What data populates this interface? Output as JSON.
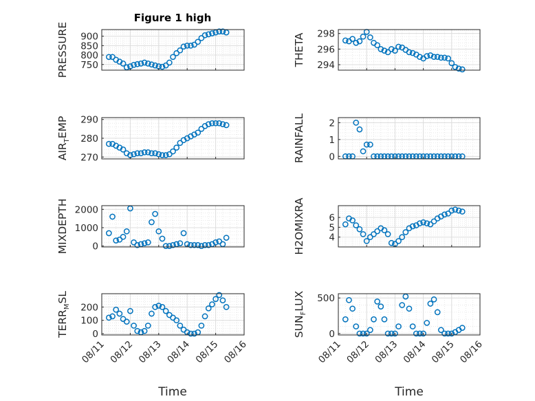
{
  "figure": {
    "title": "Figure 1 high",
    "marker_color": "#0072BD",
    "xtick_labels": [
      "08/11",
      "08/12",
      "08/13",
      "08/14",
      "08/15",
      "08/16"
    ],
    "xlabel": "Time"
  },
  "chart_data": [
    {
      "type": "scatter",
      "ylabel": "PRESSURE",
      "title": "Figure 1 high",
      "xlim": [
        "08/11",
        "08/16"
      ],
      "ylim": [
        720,
        935
      ],
      "yticks": [
        750,
        800,
        850,
        900
      ],
      "grid": true,
      "marker": "circle",
      "x": [
        "08/11 06:00",
        "08/11 09:00",
        "08/11 12:00",
        "08/11 15:00",
        "08/11 18:00",
        "08/11 21:00",
        "08/12 00:00",
        "08/12 03:00",
        "08/12 06:00",
        "08/12 09:00",
        "08/12 12:00",
        "08/12 15:00",
        "08/12 18:00",
        "08/12 21:00",
        "08/13 00:00",
        "08/13 03:00",
        "08/13 06:00",
        "08/13 09:00",
        "08/13 12:00",
        "08/13 15:00",
        "08/13 18:00",
        "08/13 21:00",
        "08/14 00:00",
        "08/14 03:00",
        "08/14 06:00",
        "08/14 09:00",
        "08/14 12:00",
        "08/14 15:00",
        "08/14 18:00",
        "08/14 21:00",
        "08/15 00:00",
        "08/15 03:00",
        "08/15 06:00",
        "08/15 09:00"
      ],
      "y": [
        790,
        790,
        775,
        765,
        755,
        735,
        740,
        748,
        752,
        755,
        760,
        755,
        750,
        745,
        740,
        738,
        745,
        760,
        790,
        810,
        825,
        845,
        850,
        850,
        855,
        870,
        890,
        905,
        910,
        915,
        920,
        925,
        925,
        920
      ]
    },
    {
      "type": "scatter",
      "ylabel": "THETA",
      "xlim": [
        "08/11",
        "08/16"
      ],
      "ylim": [
        293.3,
        298.5
      ],
      "yticks": [
        294,
        296,
        298
      ],
      "grid": true,
      "marker": "circle",
      "x": [
        "08/11 06:00",
        "08/11 09:00",
        "08/11 12:00",
        "08/11 15:00",
        "08/11 18:00",
        "08/11 21:00",
        "08/12 00:00",
        "08/12 03:00",
        "08/12 06:00",
        "08/12 09:00",
        "08/12 12:00",
        "08/12 15:00",
        "08/12 18:00",
        "08/12 21:00",
        "08/13 00:00",
        "08/13 03:00",
        "08/13 06:00",
        "08/13 09:00",
        "08/13 12:00",
        "08/13 15:00",
        "08/13 18:00",
        "08/13 21:00",
        "08/14 00:00",
        "08/14 03:00",
        "08/14 06:00",
        "08/14 09:00",
        "08/14 12:00",
        "08/14 15:00",
        "08/14 18:00",
        "08/14 21:00",
        "08/15 00:00",
        "08/15 03:00",
        "08/15 06:00",
        "08/15 09:00"
      ],
      "y": [
        297.1,
        297.0,
        297.3,
        296.8,
        297.0,
        297.6,
        298.2,
        297.5,
        296.8,
        296.5,
        296.0,
        295.8,
        295.6,
        296.0,
        295.8,
        296.3,
        296.2,
        295.9,
        295.6,
        295.5,
        295.3,
        295.0,
        294.8,
        295.1,
        295.2,
        295.0,
        295.0,
        294.9,
        294.9,
        294.8,
        294.2,
        293.7,
        293.5,
        293.4
      ]
    },
    {
      "type": "scatter",
      "ylabel": "AIR_TEMP",
      "xlim": [
        "08/11",
        "08/16"
      ],
      "ylim": [
        269,
        291
      ],
      "yticks": [
        270,
        280,
        290
      ],
      "grid": true,
      "marker": "circle",
      "x": [
        "08/11 06:00",
        "08/11 09:00",
        "08/11 12:00",
        "08/11 15:00",
        "08/11 18:00",
        "08/11 21:00",
        "08/12 00:00",
        "08/12 03:00",
        "08/12 06:00",
        "08/12 09:00",
        "08/12 12:00",
        "08/12 15:00",
        "08/12 18:00",
        "08/12 21:00",
        "08/13 00:00",
        "08/13 03:00",
        "08/13 06:00",
        "08/13 09:00",
        "08/13 12:00",
        "08/13 15:00",
        "08/13 18:00",
        "08/13 21:00",
        "08/14 00:00",
        "08/14 03:00",
        "08/14 06:00",
        "08/14 09:00",
        "08/14 12:00",
        "08/14 15:00",
        "08/14 18:00",
        "08/14 21:00",
        "08/15 00:00",
        "08/15 03:00",
        "08/15 06:00",
        "08/15 09:00"
      ],
      "y": [
        277,
        277,
        276,
        275,
        274,
        272,
        271,
        271.5,
        272,
        272,
        272.5,
        272.5,
        272,
        272,
        271.5,
        271,
        271,
        271.5,
        273,
        275,
        277.5,
        279,
        280,
        281,
        282,
        283,
        285,
        286.5,
        287.5,
        288,
        288,
        288,
        287.5,
        287
      ]
    },
    {
      "type": "scatter",
      "ylabel": "RAINFALL",
      "xlim": [
        "08/11",
        "08/16"
      ],
      "ylim": [
        -0.15,
        2.3
      ],
      "yticks": [
        0,
        1,
        2
      ],
      "grid": true,
      "marker": "circle",
      "x": [
        "08/11 06:00",
        "08/11 09:00",
        "08/11 12:00",
        "08/11 15:00",
        "08/11 18:00",
        "08/11 21:00",
        "08/12 00:00",
        "08/12 03:00",
        "08/12 06:00",
        "08/12 09:00",
        "08/12 12:00",
        "08/12 15:00",
        "08/12 18:00",
        "08/12 21:00",
        "08/13 00:00",
        "08/13 03:00",
        "08/13 06:00",
        "08/13 09:00",
        "08/13 12:00",
        "08/13 15:00",
        "08/13 18:00",
        "08/13 21:00",
        "08/14 00:00",
        "08/14 03:00",
        "08/14 06:00",
        "08/14 09:00",
        "08/14 12:00",
        "08/14 15:00",
        "08/14 18:00",
        "08/14 21:00",
        "08/15 00:00",
        "08/15 03:00",
        "08/15 06:00",
        "08/15 09:00"
      ],
      "y": [
        0,
        0,
        0,
        2,
        1.6,
        0.3,
        0.7,
        0.7,
        0,
        0,
        0,
        0,
        0,
        0,
        0,
        0,
        0,
        0,
        0,
        0,
        0,
        0,
        0,
        0,
        0,
        0,
        0,
        0,
        0,
        0,
        0,
        0,
        0,
        0
      ]
    },
    {
      "type": "scatter",
      "ylabel": "MIXDEPTH",
      "xlim": [
        "08/11",
        "08/16"
      ],
      "ylim": [
        -50,
        2200
      ],
      "yticks": [
        0,
        1000,
        2000
      ],
      "grid": true,
      "marker": "circle",
      "x": [
        "08/11 06:00",
        "08/11 09:00",
        "08/11 12:00",
        "08/11 15:00",
        "08/11 18:00",
        "08/11 21:00",
        "08/12 00:00",
        "08/12 03:00",
        "08/12 06:00",
        "08/12 09:00",
        "08/12 12:00",
        "08/12 15:00",
        "08/12 18:00",
        "08/12 21:00",
        "08/13 00:00",
        "08/13 03:00",
        "08/13 06:00",
        "08/13 09:00",
        "08/13 12:00",
        "08/13 15:00",
        "08/13 18:00",
        "08/13 21:00",
        "08/14 00:00",
        "08/14 03:00",
        "08/14 06:00",
        "08/14 09:00",
        "08/14 12:00",
        "08/14 15:00",
        "08/14 18:00",
        "08/14 21:00",
        "08/15 00:00",
        "08/15 03:00",
        "08/15 06:00",
        "08/15 09:00"
      ],
      "y": [
        700,
        1600,
        300,
        350,
        500,
        800,
        2050,
        200,
        50,
        100,
        150,
        200,
        1300,
        1750,
        800,
        400,
        0,
        0,
        50,
        100,
        150,
        700,
        100,
        50,
        50,
        50,
        0,
        50,
        50,
        100,
        200,
        250,
        100,
        450
      ]
    },
    {
      "type": "scatter",
      "ylabel": "H2OMIXRA",
      "xlim": [
        "08/11",
        "08/16"
      ],
      "ylim": [
        3.0,
        7.2
      ],
      "yticks": [
        4,
        5,
        6
      ],
      "grid": true,
      "marker": "circle",
      "x": [
        "08/11 06:00",
        "08/11 09:00",
        "08/11 12:00",
        "08/11 15:00",
        "08/11 18:00",
        "08/11 21:00",
        "08/12 00:00",
        "08/12 03:00",
        "08/12 06:00",
        "08/12 09:00",
        "08/12 12:00",
        "08/12 15:00",
        "08/12 18:00",
        "08/12 21:00",
        "08/13 00:00",
        "08/13 03:00",
        "08/13 06:00",
        "08/13 09:00",
        "08/13 12:00",
        "08/13 15:00",
        "08/13 18:00",
        "08/13 21:00",
        "08/14 00:00",
        "08/14 03:00",
        "08/14 06:00",
        "08/14 09:00",
        "08/14 12:00",
        "08/14 15:00",
        "08/14 18:00",
        "08/14 21:00",
        "08/15 00:00",
        "08/15 03:00",
        "08/15 06:00",
        "08/15 09:00"
      ],
      "y": [
        5.3,
        5.9,
        5.7,
        5.2,
        4.8,
        4.3,
        3.6,
        4.0,
        4.3,
        4.6,
        4.9,
        4.7,
        4.3,
        3.4,
        3.3,
        3.6,
        4.0,
        4.5,
        4.9,
        5.1,
        5.2,
        5.4,
        5.5,
        5.4,
        5.3,
        5.6,
        5.9,
        6.1,
        6.3,
        6.4,
        6.7,
        6.8,
        6.7,
        6.6
      ]
    },
    {
      "type": "scatter",
      "ylabel": "TERR_MSL",
      "xlim": [
        "08/11",
        "08/16"
      ],
      "ylim": [
        -10,
        300
      ],
      "yticks": [
        0,
        100,
        200
      ],
      "grid": true,
      "marker": "circle",
      "x": [
        "08/11 06:00",
        "08/11 09:00",
        "08/11 12:00",
        "08/11 15:00",
        "08/11 18:00",
        "08/11 21:00",
        "08/12 00:00",
        "08/12 03:00",
        "08/12 06:00",
        "08/12 09:00",
        "08/12 12:00",
        "08/12 15:00",
        "08/12 18:00",
        "08/12 21:00",
        "08/13 00:00",
        "08/13 03:00",
        "08/13 06:00",
        "08/13 09:00",
        "08/13 12:00",
        "08/13 15:00",
        "08/13 18:00",
        "08/13 21:00",
        "08/14 00:00",
        "08/14 03:00",
        "08/14 06:00",
        "08/14 09:00",
        "08/14 12:00",
        "08/14 15:00",
        "08/14 18:00",
        "08/14 21:00",
        "08/15 00:00",
        "08/15 03:00",
        "08/15 06:00",
        "08/15 09:00"
      ],
      "y": [
        120,
        130,
        180,
        150,
        110,
        90,
        170,
        60,
        20,
        10,
        20,
        60,
        150,
        200,
        210,
        200,
        170,
        140,
        120,
        100,
        60,
        30,
        10,
        0,
        0,
        10,
        60,
        130,
        190,
        220,
        260,
        290,
        250,
        200
      ]
    },
    {
      "type": "scatter",
      "ylabel": "SUN_FLUX",
      "xlim": [
        "08/11",
        "08/16"
      ],
      "ylim": [
        -20,
        560
      ],
      "yticks": [
        0,
        500
      ],
      "grid": true,
      "marker": "circle",
      "x": [
        "08/11 06:00",
        "08/11 09:00",
        "08/11 12:00",
        "08/11 15:00",
        "08/11 18:00",
        "08/11 21:00",
        "08/12 00:00",
        "08/12 03:00",
        "08/12 06:00",
        "08/12 09:00",
        "08/12 12:00",
        "08/12 15:00",
        "08/12 18:00",
        "08/12 21:00",
        "08/13 00:00",
        "08/13 03:00",
        "08/13 06:00",
        "08/13 09:00",
        "08/13 12:00",
        "08/13 15:00",
        "08/13 18:00",
        "08/13 21:00",
        "08/14 00:00",
        "08/14 03:00",
        "08/14 06:00",
        "08/14 09:00",
        "08/14 12:00",
        "08/14 15:00",
        "08/14 18:00",
        "08/14 21:00",
        "08/15 00:00",
        "08/15 03:00",
        "08/15 06:00",
        "08/15 09:00"
      ],
      "y": [
        200,
        470,
        350,
        100,
        0,
        0,
        0,
        50,
        200,
        450,
        380,
        200,
        0,
        0,
        0,
        100,
        400,
        520,
        350,
        100,
        0,
        0,
        0,
        150,
        420,
        480,
        300,
        50,
        0,
        0,
        0,
        20,
        50,
        80
      ]
    }
  ]
}
